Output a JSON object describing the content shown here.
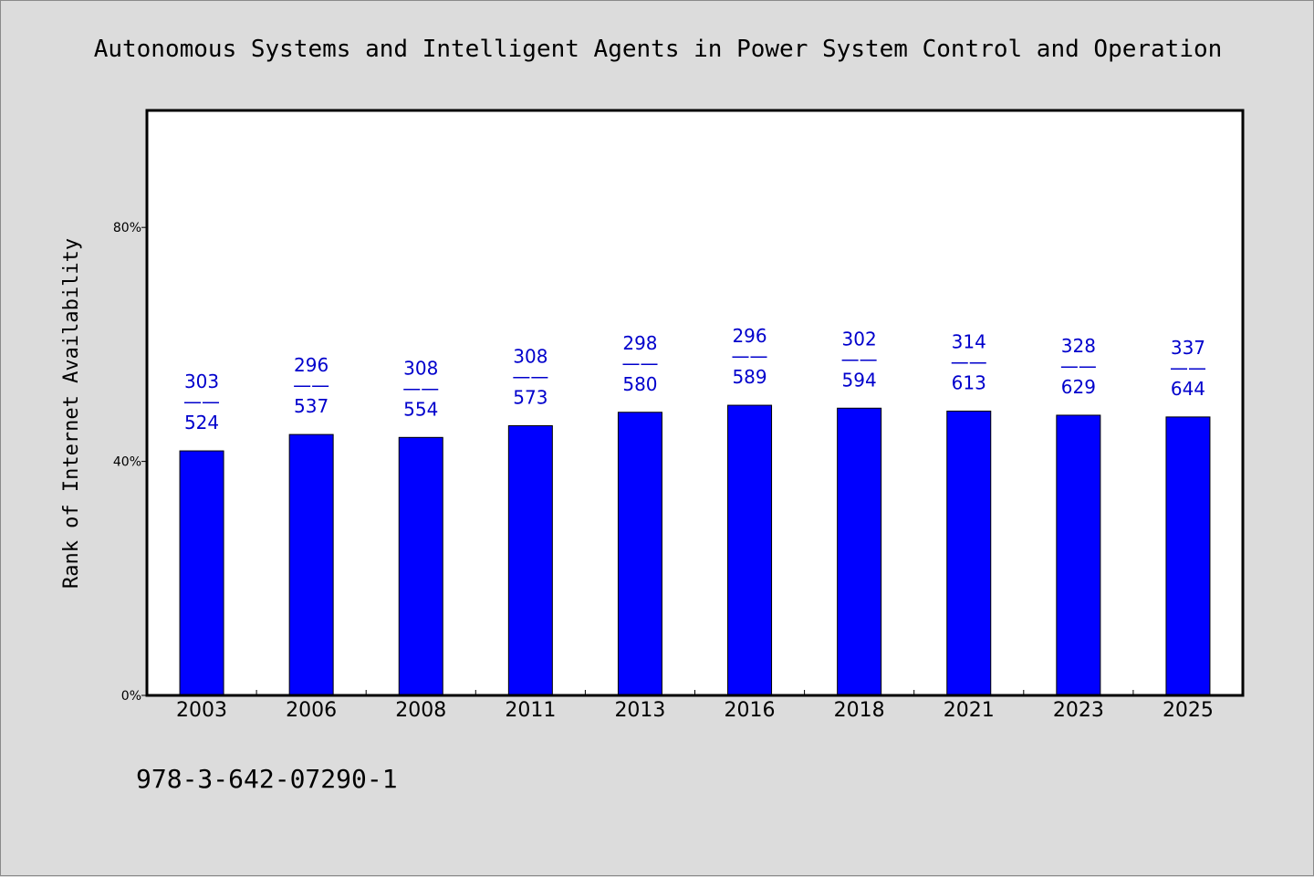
{
  "chart_data": {
    "type": "bar",
    "title": "Autonomous Systems and Intelligent Agents in Power System Control and Operation",
    "ylabel": "Rank of Internet Availability",
    "xlabel": "",
    "categories": [
      "2003",
      "2006",
      "2008",
      "2011",
      "2013",
      "2016",
      "2018",
      "2021",
      "2023",
      "2025"
    ],
    "values": [
      41.8,
      44.6,
      44.1,
      46.1,
      48.4,
      49.6,
      49.1,
      48.6,
      47.9,
      47.6
    ],
    "labels_top": [
      "303",
      "296",
      "308",
      "308",
      "298",
      "296",
      "302",
      "314",
      "328",
      "337"
    ],
    "labels_separator": "——",
    "labels_bottom": [
      "524",
      "537",
      "554",
      "573",
      "580",
      "589",
      "594",
      "613",
      "629",
      "644"
    ],
    "ylim": [
      0,
      100
    ],
    "yticks": [
      {
        "value": 0,
        "label": "0%"
      },
      {
        "value": 40,
        "label": "40%"
      },
      {
        "value": 80,
        "label": "80%"
      }
    ],
    "bar_color": "#0000ff",
    "label_color": "#0000cc",
    "grid": false,
    "legend": "none"
  },
  "footer": {
    "isbn": "978-3-642-07290-1"
  },
  "colors": {
    "background": "#dcdcdc",
    "plot_background": "#ffffff"
  }
}
